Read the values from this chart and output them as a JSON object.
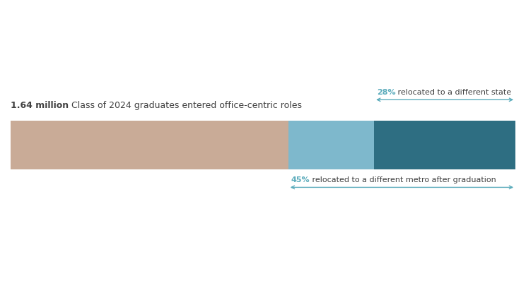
{
  "title_bold": "1.64 million",
  "title_regular": " Class of 2024 graduates entered office-centric roles",
  "segment1_pct": 0.55,
  "segment2_pct": 0.17,
  "segment3_pct": 0.28,
  "color_segment1": "#c9ab97",
  "color_segment2": "#7eb8cc",
  "color_segment3": "#2e6e82",
  "arrow_color": "#5aabbb",
  "text_color_dark": "#404040",
  "text_color_arrow": "#5aabbb",
  "label_28pct_bold": "28%",
  "label_28pct_text": " relocated to a different state ",
  "label_45pct_bold": "45%",
  "label_45pct_text": " relocated to a different metro after graduation",
  "bg_color": "#ffffff",
  "title_fontsize": 9.0,
  "annotation_fontsize": 8.0
}
